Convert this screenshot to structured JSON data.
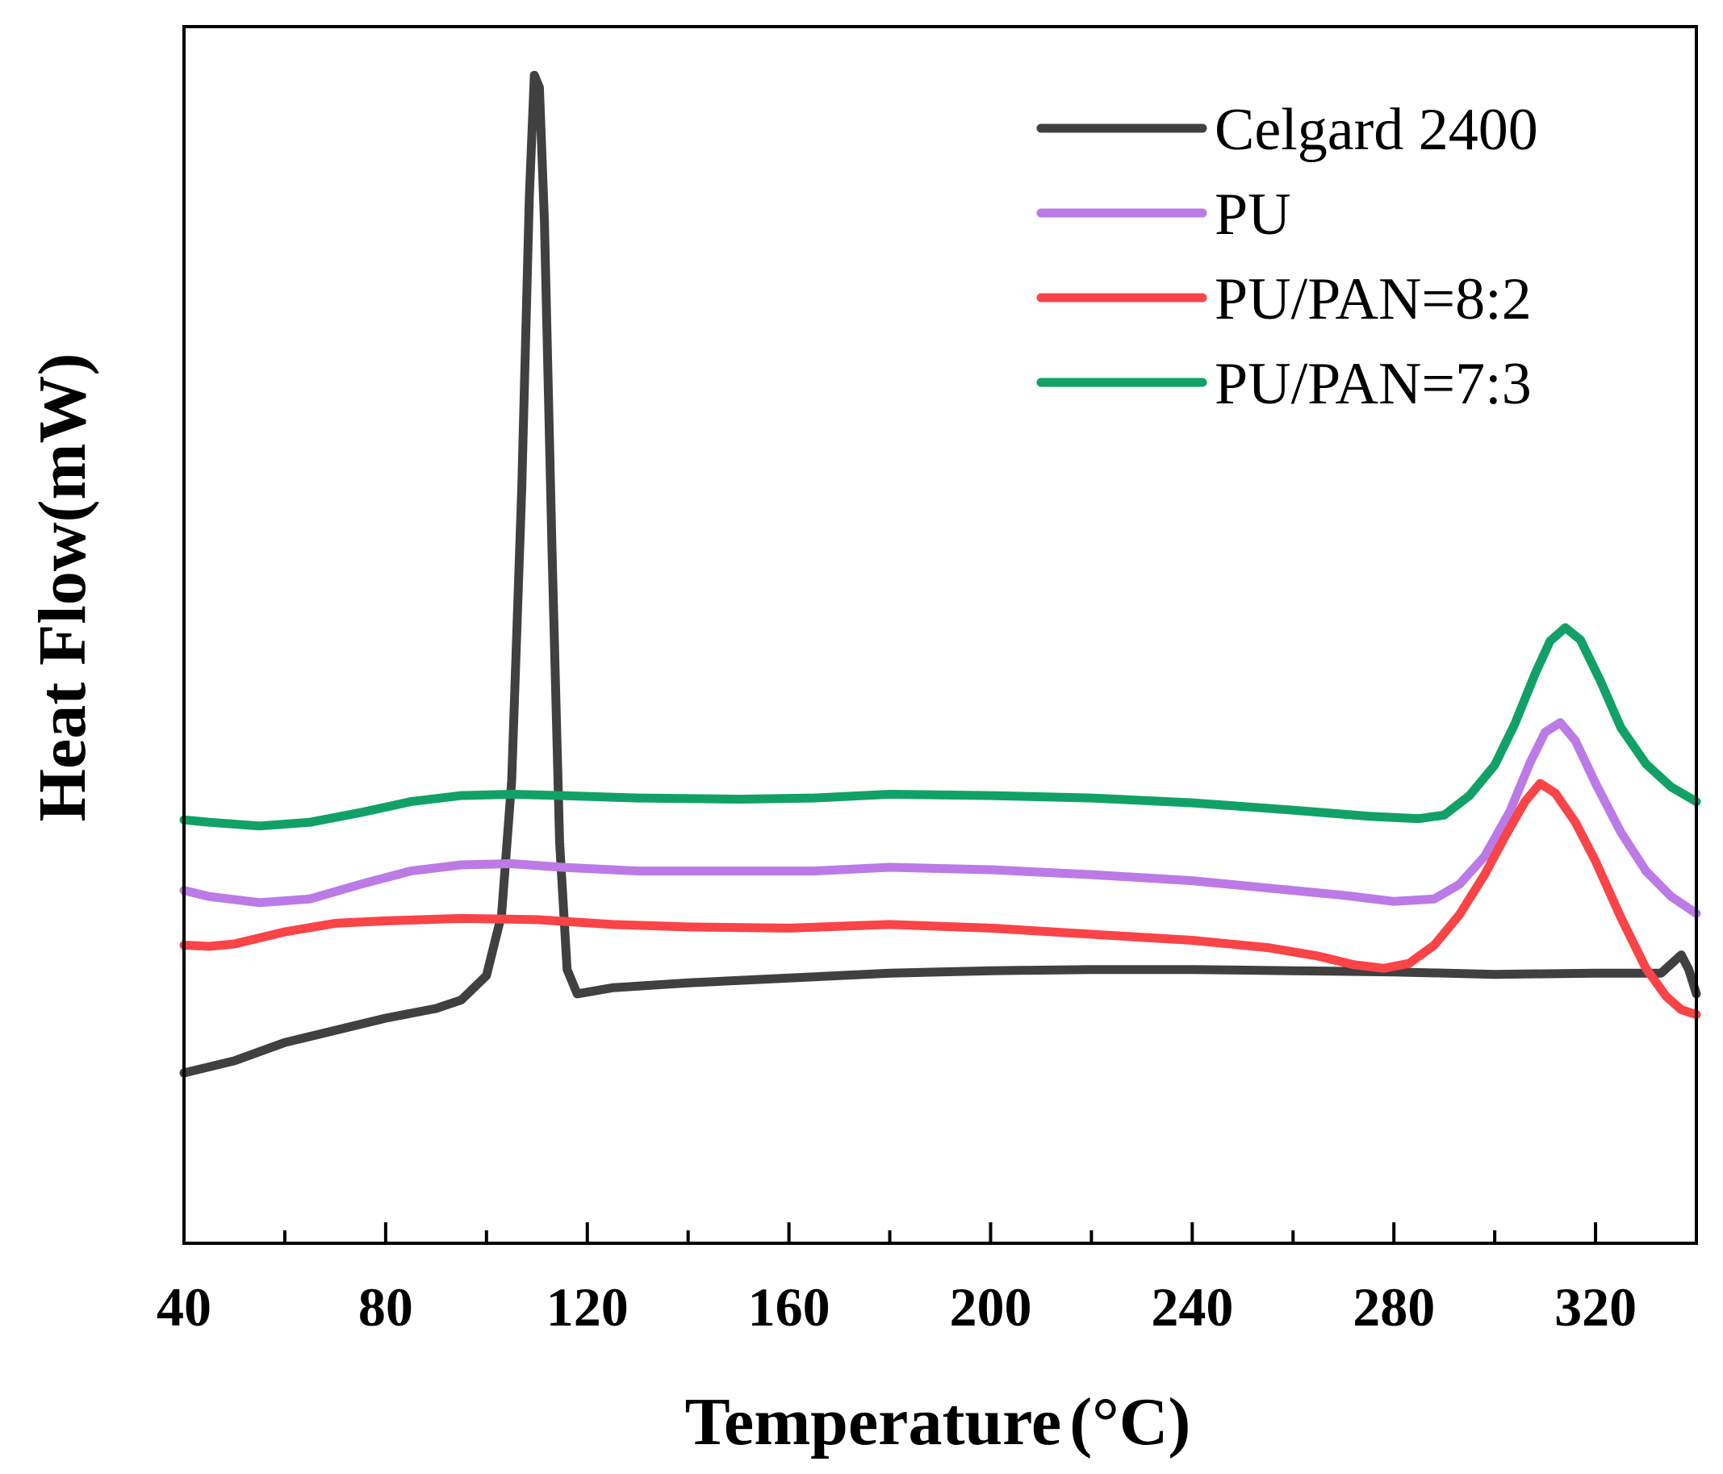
{
  "chart_data": {
    "type": "line",
    "title": "",
    "xlabel": "Temperature",
    "xlabel_unit": "(°C)",
    "ylabel": "Heat Flow(mW)",
    "xlim": [
      40,
      340
    ],
    "ylim": [
      0,
      100
    ],
    "xticks": [
      40,
      80,
      120,
      160,
      200,
      240,
      280,
      320
    ],
    "xticklabels": [
      "40",
      "80",
      "120",
      "160",
      "200",
      "240",
      "280",
      "320"
    ],
    "y_ticks_shown": false,
    "grid": false,
    "legend_position": "top-right",
    "series": [
      {
        "name": "Celgard 2400",
        "color": "#404040",
        "points": [
          [
            40,
            14
          ],
          [
            50,
            15
          ],
          [
            60,
            16.5
          ],
          [
            70,
            17.5
          ],
          [
            80,
            18.5
          ],
          [
            90,
            19.3
          ],
          [
            95,
            20
          ],
          [
            100,
            22
          ],
          [
            103,
            27
          ],
          [
            105,
            38
          ],
          [
            107,
            62
          ],
          [
            108.5,
            86
          ],
          [
            109.5,
            96
          ],
          [
            110.5,
            95
          ],
          [
            111.5,
            84
          ],
          [
            113,
            57
          ],
          [
            114.5,
            33
          ],
          [
            116,
            22.5
          ],
          [
            118,
            20.5
          ],
          [
            125,
            21
          ],
          [
            140,
            21.4
          ],
          [
            160,
            21.8
          ],
          [
            180,
            22.2
          ],
          [
            200,
            22.4
          ],
          [
            220,
            22.5
          ],
          [
            240,
            22.5
          ],
          [
            260,
            22.4
          ],
          [
            280,
            22.3
          ],
          [
            300,
            22.1
          ],
          [
            320,
            22.2
          ],
          [
            333,
            22.2
          ],
          [
            337,
            23.7
          ],
          [
            338.5,
            22.5
          ],
          [
            340,
            20.5
          ]
        ]
      },
      {
        "name": "PU",
        "color": "#bc7ae6",
        "points": [
          [
            40,
            29
          ],
          [
            45,
            28.5
          ],
          [
            55,
            28
          ],
          [
            65,
            28.3
          ],
          [
            75,
            29.5
          ],
          [
            85,
            30.6
          ],
          [
            95,
            31.1
          ],
          [
            105,
            31.2
          ],
          [
            115,
            30.9
          ],
          [
            130,
            30.6
          ],
          [
            150,
            30.6
          ],
          [
            165,
            30.6
          ],
          [
            180,
            30.9
          ],
          [
            200,
            30.7
          ],
          [
            220,
            30.3
          ],
          [
            240,
            29.8
          ],
          [
            255,
            29.2
          ],
          [
            270,
            28.6
          ],
          [
            280,
            28.1
          ],
          [
            288,
            28.3
          ],
          [
            293,
            29.5
          ],
          [
            298,
            31.8
          ],
          [
            303,
            35.5
          ],
          [
            307,
            39.5
          ],
          [
            310,
            42
          ],
          [
            313,
            42.8
          ],
          [
            316,
            41.3
          ],
          [
            320,
            37.8
          ],
          [
            325,
            33.8
          ],
          [
            330,
            30.6
          ],
          [
            335,
            28.5
          ],
          [
            340,
            27.1
          ]
        ]
      },
      {
        "name": "PU/PAN=8:2",
        "color": "#fa4447",
        "points": [
          [
            40,
            24.5
          ],
          [
            45,
            24.4
          ],
          [
            50,
            24.6
          ],
          [
            60,
            25.6
          ],
          [
            70,
            26.3
          ],
          [
            80,
            26.5
          ],
          [
            95,
            26.7
          ],
          [
            110,
            26.6
          ],
          [
            125,
            26.2
          ],
          [
            140,
            26
          ],
          [
            160,
            25.9
          ],
          [
            180,
            26.2
          ],
          [
            200,
            25.9
          ],
          [
            220,
            25.4
          ],
          [
            240,
            24.9
          ],
          [
            255,
            24.3
          ],
          [
            265,
            23.6
          ],
          [
            272,
            22.9
          ],
          [
            278,
            22.6
          ],
          [
            283,
            23
          ],
          [
            288,
            24.5
          ],
          [
            293,
            27
          ],
          [
            298,
            30.3
          ],
          [
            302,
            33.4
          ],
          [
            306,
            36.3
          ],
          [
            309,
            37.8
          ],
          [
            312,
            37
          ],
          [
            316,
            34.6
          ],
          [
            320,
            31.4
          ],
          [
            325,
            26.8
          ],
          [
            330,
            22.6
          ],
          [
            334,
            20.3
          ],
          [
            337,
            19.2
          ],
          [
            340,
            18.8
          ]
        ]
      },
      {
        "name": "PU/PAN=7:3",
        "color": "#11a166",
        "points": [
          [
            40,
            34.8
          ],
          [
            45,
            34.6
          ],
          [
            55,
            34.3
          ],
          [
            65,
            34.6
          ],
          [
            75,
            35.4
          ],
          [
            85,
            36.3
          ],
          [
            95,
            36.8
          ],
          [
            105,
            36.9
          ],
          [
            115,
            36.8
          ],
          [
            130,
            36.6
          ],
          [
            150,
            36.5
          ],
          [
            165,
            36.6
          ],
          [
            180,
            36.9
          ],
          [
            200,
            36.8
          ],
          [
            220,
            36.6
          ],
          [
            240,
            36.2
          ],
          [
            260,
            35.6
          ],
          [
            275,
            35.1
          ],
          [
            285,
            34.9
          ],
          [
            290,
            35.2
          ],
          [
            295,
            36.8
          ],
          [
            300,
            39.3
          ],
          [
            304,
            42.7
          ],
          [
            308,
            46.8
          ],
          [
            311,
            49.5
          ],
          [
            314,
            50.6
          ],
          [
            317,
            49.6
          ],
          [
            321,
            46.2
          ],
          [
            325,
            42.4
          ],
          [
            330,
            39.4
          ],
          [
            335,
            37.5
          ],
          [
            340,
            36.3
          ]
        ]
      }
    ]
  }
}
